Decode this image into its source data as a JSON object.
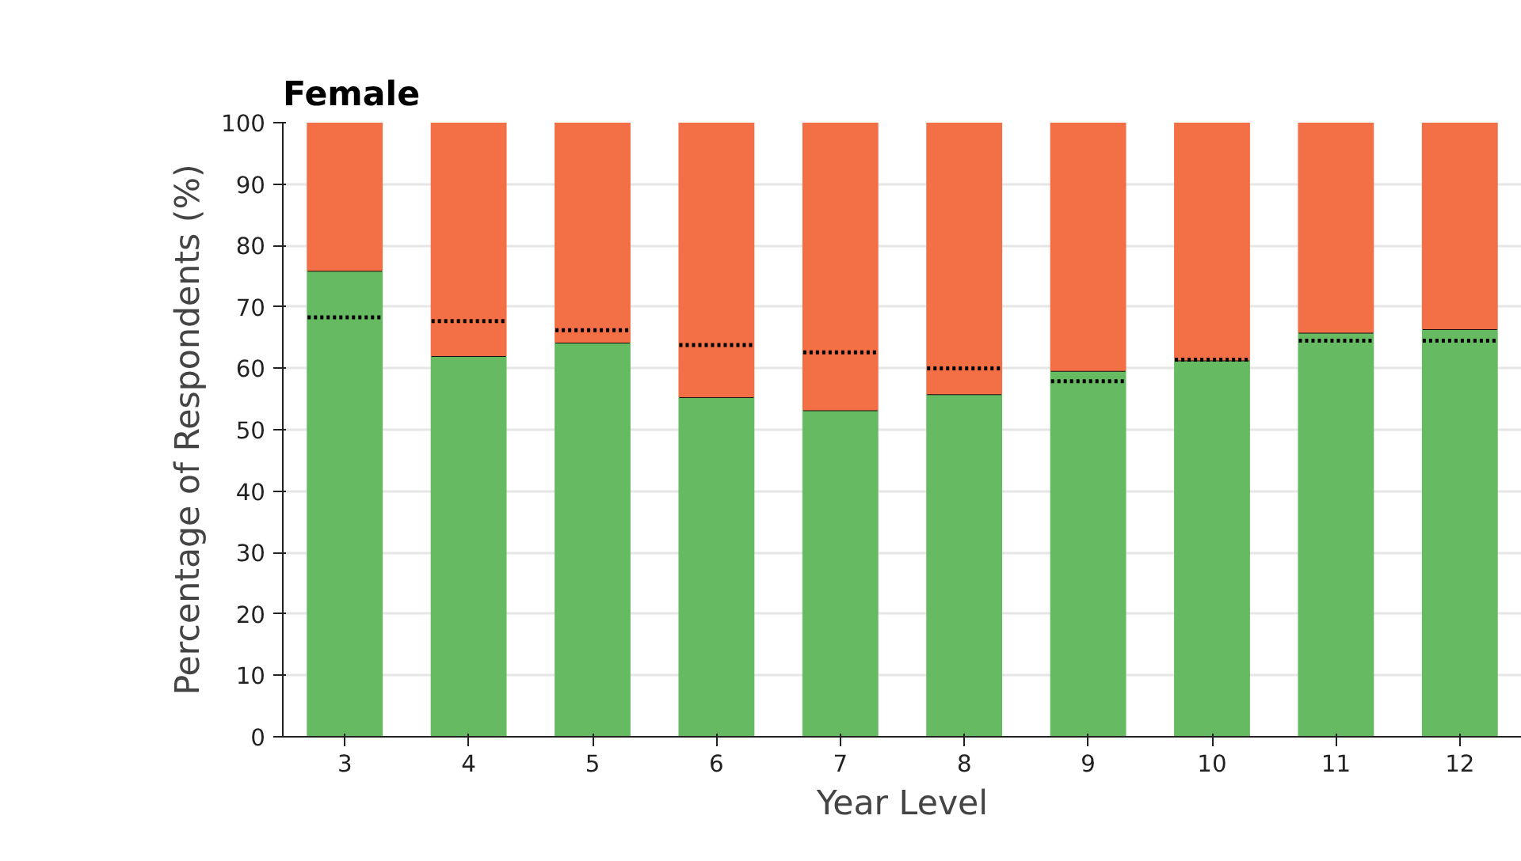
{
  "chart_data": {
    "type": "bar",
    "title": "Female",
    "xlabel": "Year Level",
    "ylabel": "Percentage of Respondents (%)",
    "x": [
      3,
      4,
      5,
      6,
      7,
      8,
      9,
      10,
      11,
      12
    ],
    "xlim": [
      2.5,
      12.5
    ],
    "xticks": [
      3,
      4,
      5,
      6,
      7,
      8,
      9,
      10,
      11,
      12
    ],
    "stacked": true,
    "series": [
      {
        "color": "#66bb62",
        "values": [
          76.0,
          62.1,
          64.3,
          55.4,
          53.3,
          55.9,
          59.7,
          61.4,
          65.9,
          66.5
        ]
      },
      {
        "color": "#f36f45",
        "values": [
          24.0,
          37.9,
          35.7,
          44.6,
          46.7,
          44.1,
          40.3,
          38.6,
          34.1,
          33.5
        ]
      },
      {
        "type": "line",
        "line_style": "dotted",
        "color": "#000000",
        "x": [
          2.7,
          3.3,
          3.5,
          3.7,
          4.3,
          4.5,
          4.7,
          5.3,
          5.5,
          5.7,
          6.3,
          6.5,
          6.7,
          7.3,
          7.5,
          7.7,
          8.3,
          8.5,
          8.7,
          9.3,
          9.5,
          9.7,
          10.3,
          10.5,
          10.7,
          11.3,
          11.5,
          11.7,
          12.3
        ],
        "values": [
          68.3,
          68.3,
          null,
          67.7,
          67.7,
          null,
          66.2,
          66.2,
          null,
          63.8,
          63.8,
          null,
          62.6,
          62.6,
          null,
          60.0,
          60.0,
          null,
          57.9,
          57.9,
          null,
          61.4,
          61.4,
          null,
          64.5,
          64.5,
          null,
          64.5,
          64.5
        ]
      }
    ],
    "ylim": [
      0,
      100
    ],
    "yticks": [
      0,
      10,
      20,
      30,
      40,
      50,
      60,
      70,
      80,
      90,
      100
    ],
    "grid": "y"
  }
}
